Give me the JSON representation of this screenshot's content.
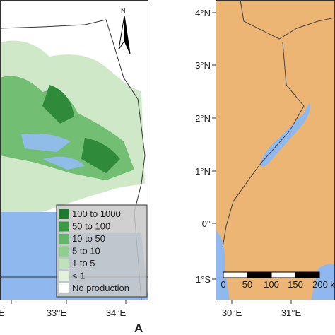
{
  "left_panel": {
    "x_labels": [
      "E",
      "33°E",
      "34°E"
    ],
    "north": "N",
    "panel_label": "A",
    "legend": [
      {
        "label": "100 to 1000",
        "color": "#1e7a2e"
      },
      {
        "label": "50 to 100",
        "color": "#3a9a45"
      },
      {
        "label": "10 to 50",
        "color": "#62b868"
      },
      {
        "label": "5 to 10",
        "color": "#8fcf8c"
      },
      {
        "label": "1 to 5",
        "color": "#bde3b6"
      },
      {
        "label": "< 1",
        "color": "#e2f2dc"
      },
      {
        "label": "No production",
        "color": "#ffffff"
      }
    ]
  },
  "right_panel": {
    "y_labels": [
      "4°N",
      "3°N",
      "2°N",
      "1°N",
      "0°",
      "1°S"
    ],
    "x_labels": [
      "30°E",
      "31°E"
    ],
    "scale_labels": [
      "0",
      "50",
      "100",
      "150",
      "200 k"
    ]
  }
}
